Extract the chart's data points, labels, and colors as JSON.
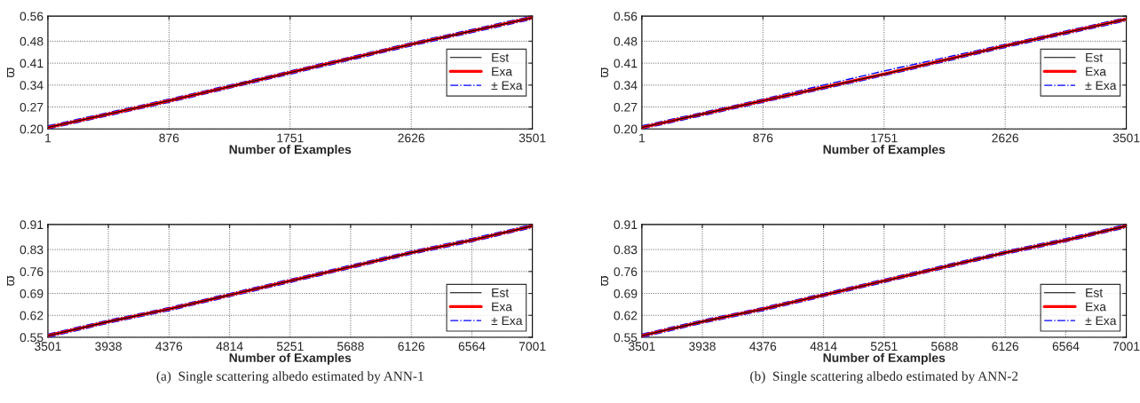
{
  "chart_data": [
    {
      "type": "line",
      "xlabel": "Number of Examples",
      "ylabel": "ϖ",
      "x": [
        1,
        876,
        1751,
        2626,
        3501
      ],
      "xlim": [
        1,
        3501
      ],
      "xticks": [
        1,
        876,
        1751,
        2626,
        3501
      ],
      "ylim": [
        0.2,
        0.56
      ],
      "yticks": [
        {
          "value": 0.2,
          "label": "0.20"
        },
        0.27,
        0.34,
        0.41,
        0.48,
        0.56
      ],
      "grid": true,
      "legend": "right",
      "series": [
        {
          "name": "Est",
          "color": "#000000",
          "line_style": "solid",
          "values": [
            0.205,
            0.29,
            0.38,
            0.47,
            0.555
          ]
        },
        {
          "name": "Exa",
          "color": "#ff0000",
          "line_style": "solid",
          "values": [
            0.205,
            0.29,
            0.38,
            0.47,
            0.555
          ]
        },
        {
          "name": "± Exa",
          "color": "#0000ff",
          "line_style": "dashdot",
          "values": [
            0.21,
            0.295,
            0.385,
            0.475,
            0.56
          ]
        },
        {
          "color": "#0000ff",
          "line_style": "dashdot",
          "values": [
            0.2,
            0.285,
            0.375,
            0.465,
            0.55
          ]
        }
      ]
    },
    {
      "type": "line",
      "xlabel": "Number of Examples",
      "ylabel": "ϖ",
      "x": [
        1,
        876,
        1751,
        2626,
        3501
      ],
      "xlim": [
        1,
        3501
      ],
      "xticks": [
        1,
        876,
        1751,
        2626,
        3501
      ],
      "ylim": [
        0.2,
        0.56
      ],
      "yticks": [
        {
          "value": 0.2,
          "label": "0.20"
        },
        0.27,
        0.34,
        0.41,
        0.48,
        0.56
      ],
      "grid": true,
      "legend": "right",
      "series": [
        {
          "name": "Est",
          "color": "#000000",
          "line_style": "solid",
          "values": [
            0.205,
            0.29,
            0.375,
            0.465,
            0.55
          ]
        },
        {
          "name": "Exa",
          "color": "#ff0000",
          "line_style": "solid",
          "values": [
            0.205,
            0.29,
            0.375,
            0.465,
            0.55
          ]
        },
        {
          "name": "± Exa",
          "color": "#0000ff",
          "line_style": "dashdot",
          "values": [
            0.21,
            0.295,
            0.385,
            0.47,
            0.555
          ]
        },
        {
          "color": "#0000ff",
          "line_style": "dashdot",
          "values": [
            0.2,
            0.285,
            0.37,
            0.46,
            0.545
          ]
        }
      ]
    },
    {
      "type": "line",
      "xlabel": "Number of Examples",
      "ylabel": "ϖ",
      "x": [
        3501,
        3938,
        4376,
        4814,
        5251,
        5688,
        6126,
        6564,
        7001
      ],
      "xlim": [
        3501,
        7001
      ],
      "xticks": [
        3501,
        3938,
        4376,
        4814,
        5251,
        5688,
        6126,
        6564,
        7001
      ],
      "ylim": [
        0.55,
        0.91
      ],
      "yticks": [
        0.55,
        0.62,
        0.69,
        0.76,
        0.83,
        0.91
      ],
      "grid": true,
      "legend": "bottom right",
      "annotations": [
        "(a)  Single scattering albedo estimated by ANN-1"
      ],
      "series": [
        {
          "name": "Est",
          "color": "#000000",
          "line_style": "solid",
          "values": [
            0.555,
            0.6,
            0.64,
            0.685,
            0.73,
            0.775,
            0.82,
            0.86,
            0.905
          ]
        },
        {
          "name": "Exa",
          "color": "#ff0000",
          "line_style": "solid",
          "values": [
            0.555,
            0.6,
            0.64,
            0.685,
            0.73,
            0.775,
            0.82,
            0.86,
            0.905
          ]
        },
        {
          "name": "± Exa",
          "color": "#0000ff",
          "line_style": "dashdot",
          "values": [
            0.56,
            0.605,
            0.645,
            0.69,
            0.735,
            0.78,
            0.825,
            0.865,
            0.91
          ]
        },
        {
          "color": "#0000ff",
          "line_style": "dashdot",
          "values": [
            0.55,
            0.595,
            0.635,
            0.68,
            0.725,
            0.77,
            0.815,
            0.855,
            0.9
          ]
        }
      ]
    },
    {
      "type": "line",
      "xlabel": "Number of Examples",
      "ylabel": "ϖ",
      "x": [
        3501,
        3938,
        4376,
        4814,
        5251,
        5688,
        6126,
        6564,
        7001
      ],
      "xlim": [
        3501,
        7001
      ],
      "xticks": [
        3501,
        3938,
        4376,
        4814,
        5251,
        5688,
        6126,
        6564,
        7001
      ],
      "ylim": [
        0.55,
        0.91
      ],
      "yticks": [
        0.55,
        0.62,
        0.69,
        0.76,
        0.83,
        0.91
      ],
      "grid": true,
      "legend": "bottom right",
      "annotations": [
        "(b)  Single scattering albedo estimated by ANN-2"
      ],
      "series": [
        {
          "name": "Est",
          "color": "#000000",
          "line_style": "solid",
          "values": [
            0.555,
            0.6,
            0.64,
            0.685,
            0.73,
            0.775,
            0.82,
            0.86,
            0.905
          ]
        },
        {
          "name": "Exa",
          "color": "#ff0000",
          "line_style": "solid",
          "values": [
            0.555,
            0.6,
            0.64,
            0.685,
            0.73,
            0.775,
            0.82,
            0.86,
            0.905
          ]
        },
        {
          "name": "± Exa",
          "color": "#0000ff",
          "line_style": "dashdot",
          "values": [
            0.56,
            0.605,
            0.645,
            0.69,
            0.735,
            0.78,
            0.825,
            0.865,
            0.91
          ]
        },
        {
          "color": "#0000ff",
          "line_style": "dashdot",
          "values": [
            0.55,
            0.595,
            0.635,
            0.68,
            0.725,
            0.77,
            0.815,
            0.855,
            0.9
          ]
        }
      ]
    }
  ]
}
